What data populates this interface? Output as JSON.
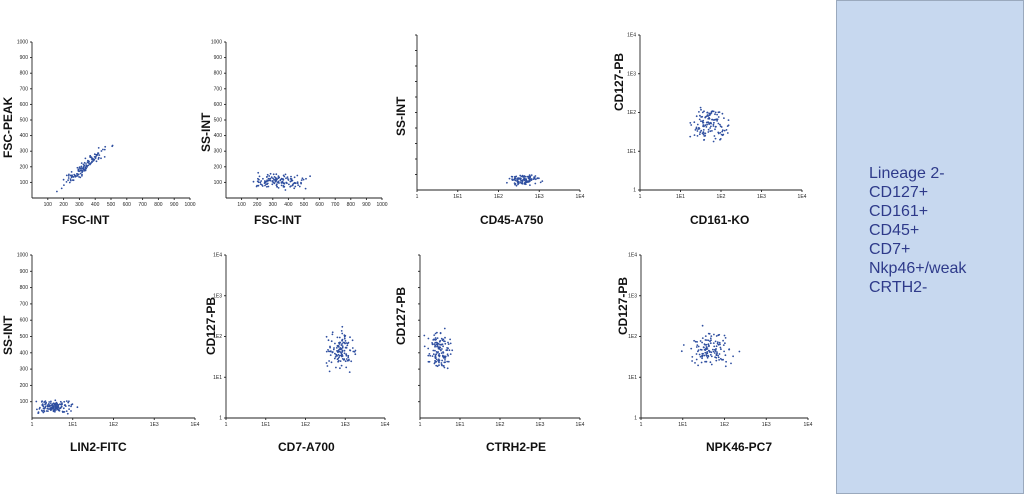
{
  "chart_data": [
    {
      "type": "scatter",
      "xlabel": "FSC-INT",
      "ylabel": "FSC-PEAK",
      "scale": "linear",
      "xticks": [
        "100",
        "200",
        "300",
        "400",
        "500",
        "600",
        "700",
        "800",
        "900",
        "1000"
      ],
      "yticks": [
        "100",
        "200",
        "300",
        "400",
        "500",
        "600",
        "700",
        "800",
        "900",
        "1000"
      ],
      "xlim": [
        0,
        1000
      ],
      "ylim": [
        0,
        1000
      ],
      "cluster": {
        "x_center": 330,
        "y_center": 200,
        "x_spread": 70,
        "y_spread": 38,
        "shape": "diagonal",
        "n": 130
      }
    },
    {
      "type": "scatter",
      "xlabel": "FSC-INT",
      "ylabel": "SS-INT",
      "scale": "linear",
      "xticks": [
        "100",
        "200",
        "300",
        "400",
        "500",
        "600",
        "700",
        "800",
        "900",
        "1000"
      ],
      "yticks": [
        "100",
        "200",
        "300",
        "400",
        "500",
        "600",
        "700",
        "800",
        "900",
        "1000"
      ],
      "xlim": [
        0,
        1000
      ],
      "ylim": [
        0,
        1000
      ],
      "cluster": {
        "x_center": 330,
        "y_center": 105,
        "x_spread": 85,
        "y_spread": 22,
        "shape": "ellipse",
        "n": 140
      }
    },
    {
      "type": "scatter",
      "xlabel": "CD45-A750",
      "ylabel": "SS-INT",
      "scale": "log",
      "xticks": [
        "1",
        "1E1",
        "1E2",
        "1E3",
        "1E4"
      ],
      "yticks": [],
      "xlim": [
        1,
        10000
      ],
      "ylim": [
        0,
        1000
      ],
      "cluster": {
        "x_center": 420,
        "y_center": 65,
        "x_spread": 0.18,
        "y_spread": 16,
        "shape": "ellipse",
        "n": 110
      }
    },
    {
      "type": "scatter",
      "xlabel": "CD161-KO",
      "ylabel": "CD127-PB",
      "scale": "log",
      "xticks": [
        "1",
        "1E1",
        "1E2",
        "1E3",
        "1E4"
      ],
      "yticks": [
        "1",
        "1E1",
        "1E2",
        "1E3",
        "1E4"
      ],
      "xlim": [
        1,
        10000
      ],
      "ylim": [
        1,
        10000
      ],
      "cluster": {
        "x_center": 55,
        "y_center": 50,
        "x_spread": 0.2,
        "y_spread": 0.24,
        "shape": "ellipse",
        "n": 130
      }
    },
    {
      "type": "scatter",
      "xlabel": "LIN2-FITC",
      "ylabel": "SS-INT",
      "scale": "log",
      "xticks": [
        "1",
        "1E1",
        "1E2",
        "1E3",
        "1E4"
      ],
      "yticks": [
        "100",
        "200",
        "300",
        "400",
        "500",
        "600",
        "700",
        "800",
        "900",
        "1000"
      ],
      "xlim": [
        1,
        10000
      ],
      "ylim": [
        0,
        1000
      ],
      "cluster": {
        "x_center": 3.5,
        "y_center": 70,
        "x_spread": 0.22,
        "y_spread": 20,
        "shape": "ellipse",
        "n": 140
      }
    },
    {
      "type": "scatter",
      "xlabel": "CD7-A700",
      "ylabel": "CD127-PB",
      "scale": "log",
      "xticks": [
        "1",
        "1E1",
        "1E2",
        "1E3",
        "1E4"
      ],
      "yticks": [
        "1",
        "1E1",
        "1E2",
        "1E3",
        "1E4"
      ],
      "xlim": [
        1,
        10000
      ],
      "ylim": [
        1,
        10000
      ],
      "cluster": {
        "x_center": 800,
        "y_center": 45,
        "x_spread": 0.17,
        "y_spread": 0.2,
        "shape": "ellipse",
        "n": 130
      }
    },
    {
      "type": "scatter",
      "xlabel": "CTRH2-PE",
      "ylabel": "CD127-PB",
      "scale": "log",
      "xticks": [
        "1",
        "1E1",
        "1E2",
        "1E3",
        "1E4"
      ],
      "yticks": [],
      "xlim": [
        1,
        10000
      ],
      "ylim": [
        1,
        10000
      ],
      "cluster": {
        "x_center": 3,
        "y_center": 45,
        "x_spread": 0.15,
        "y_spread": 0.22,
        "shape": "ellipse",
        "n": 130
      }
    },
    {
      "type": "scatter",
      "xlabel": "NPK46-PC7",
      "ylabel": "CD127-PB",
      "scale": "log",
      "xticks": [
        "1",
        "1E1",
        "1E2",
        "1E3",
        "1E4"
      ],
      "yticks": [
        "1",
        "1E1",
        "1E2",
        "1E3",
        "1E4"
      ],
      "xlim": [
        1,
        10000
      ],
      "ylim": [
        1,
        10000
      ],
      "cluster": {
        "x_center": 45,
        "y_center": 50,
        "x_spread": 0.25,
        "y_spread": 0.2,
        "shape": "ellipse",
        "n": 130
      }
    }
  ],
  "sidebar": {
    "lines": [
      "Lineage 2-",
      "CD127+",
      "CD161+",
      "CD45+",
      "CD7+",
      "Nkp46+/weak",
      "CRTH2-"
    ]
  }
}
